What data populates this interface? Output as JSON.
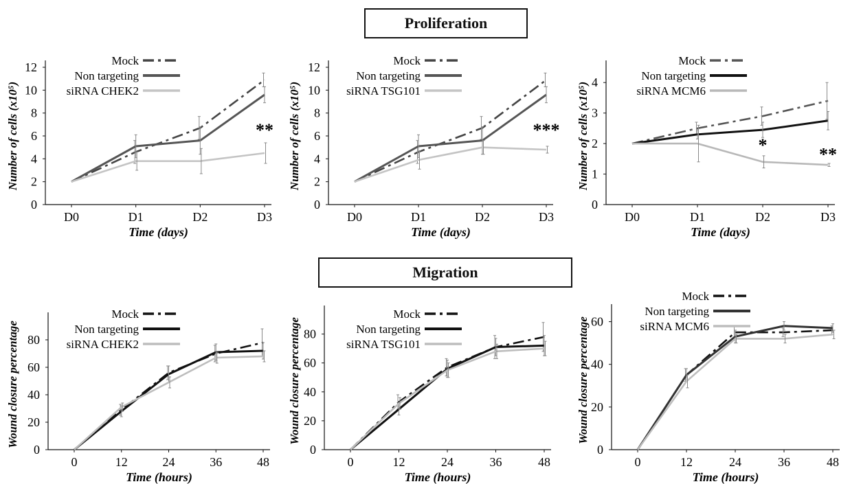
{
  "sections": {
    "proliferation": "Proliferation",
    "migration": "Migration"
  },
  "colors": {
    "mock": "#333333",
    "non_targeting": "#111111",
    "sirna": "#b8b8b8",
    "sirna_dark": "#666666"
  },
  "chart_data": [
    {
      "type": "line",
      "xlabel": "Time (days)",
      "ylabel": "Number of cells (x10⁵)",
      "categories": [
        "D0",
        "D1",
        "D2",
        "D3"
      ],
      "ylim": [
        0,
        12
      ],
      "yticks": [
        0,
        2,
        4,
        6,
        8,
        10,
        12
      ],
      "legend_position": "top-left",
      "series": [
        {
          "name": "Mock",
          "style": "dashdot",
          "color": "#444444",
          "values": [
            2,
            4.6,
            6.7,
            10.9
          ],
          "err": [
            0,
            1.0,
            1.0,
            0.6
          ]
        },
        {
          "name": "Non targeting",
          "style": "solid",
          "color": "#555555",
          "values": [
            2,
            5.1,
            5.6,
            9.6
          ],
          "err": [
            0,
            1.0,
            1.2,
            0.7
          ]
        },
        {
          "name": "siRNA CHEK2",
          "style": "solid",
          "color": "#c4c4c4",
          "values": [
            2,
            3.8,
            3.8,
            4.5
          ],
          "err": [
            0,
            0.8,
            1.1,
            0.9
          ]
        }
      ],
      "annotations": [
        {
          "text": "**",
          "x": "D3",
          "y": 6.0
        }
      ]
    },
    {
      "type": "line",
      "xlabel": "Time (days)",
      "ylabel": "Number of cells (x10⁵)",
      "categories": [
        "D0",
        "D1",
        "D2",
        "D3"
      ],
      "ylim": [
        0,
        12
      ],
      "yticks": [
        0,
        2,
        4,
        6,
        8,
        10,
        12
      ],
      "legend_position": "top-left",
      "series": [
        {
          "name": "Mock",
          "style": "dashdot",
          "color": "#444444",
          "values": [
            2,
            4.6,
            6.7,
            10.9
          ],
          "err": [
            0,
            1.0,
            1.0,
            0.6
          ]
        },
        {
          "name": "Non targeting",
          "style": "solid",
          "color": "#555555",
          "values": [
            2,
            5.1,
            5.6,
            9.6
          ],
          "err": [
            0,
            1.0,
            1.2,
            0.7
          ]
        },
        {
          "name": "siRNA TSG101",
          "style": "solid",
          "color": "#c4c4c4",
          "values": [
            2,
            3.9,
            5.0,
            4.8
          ],
          "err": [
            0,
            0.8,
            0.6,
            0.3
          ]
        }
      ],
      "annotations": [
        {
          "text": "***",
          "x": "D3",
          "y": 6.0
        }
      ]
    },
    {
      "type": "line",
      "xlabel": "Time (days)",
      "ylabel": "Number of cells (x10⁵)",
      "categories": [
        "D0",
        "D1",
        "D2",
        "D3"
      ],
      "ylim": [
        0,
        4.5
      ],
      "yticks": [
        0,
        1,
        2,
        3,
        4
      ],
      "legend_position": "top-left",
      "series": [
        {
          "name": "Mock",
          "style": "dashdot",
          "color": "#555555",
          "values": [
            2,
            2.5,
            2.9,
            3.4
          ],
          "err": [
            0,
            0.2,
            0.3,
            0.6
          ]
        },
        {
          "name": "Non targeting",
          "style": "solid",
          "color": "#111111",
          "values": [
            2,
            2.3,
            2.45,
            2.75
          ],
          "err": [
            0,
            0.15,
            0.25,
            0.3
          ]
        },
        {
          "name": "siRNA MCM6",
          "style": "solid",
          "color": "#b8b8b8",
          "values": [
            2,
            2.0,
            1.4,
            1.3
          ],
          "err": [
            0,
            0.6,
            0.2,
            0.05
          ]
        }
      ],
      "annotations": [
        {
          "text": "*",
          "x": "D2",
          "y": 1.75
        },
        {
          "text": "**",
          "x": "D3",
          "y": 1.45
        }
      ]
    },
    {
      "type": "line",
      "xlabel": "Time (hours)",
      "ylabel": "Wound closure percentage",
      "categories": [
        "0",
        "12",
        "24",
        "36",
        "48"
      ],
      "ylim": [
        0,
        95
      ],
      "yticks": [
        0,
        20,
        40,
        60,
        80
      ],
      "legend_position": "top-left",
      "series": [
        {
          "name": "Mock",
          "style": "dashdot",
          "color": "#111111",
          "values": [
            0,
            29,
            56,
            70,
            78
          ],
          "err": [
            0,
            4,
            5,
            6,
            10
          ]
        },
        {
          "name": "Non targeting",
          "style": "solid",
          "color": "#111111",
          "values": [
            0,
            28,
            55,
            71,
            72
          ],
          "err": [
            0,
            4,
            6,
            6,
            6
          ]
        },
        {
          "name": "siRNA CHEK2",
          "style": "solid",
          "color": "#bdbdbd",
          "values": [
            0,
            31,
            49,
            67,
            68
          ],
          "err": [
            0,
            3,
            4,
            4,
            4
          ]
        }
      ],
      "annotations": []
    },
    {
      "type": "line",
      "xlabel": "Time (hours)",
      "ylabel": "Wound closure percentage",
      "categories": [
        "0",
        "12",
        "24",
        "36",
        "48"
      ],
      "ylim": [
        0,
        95
      ],
      "yticks": [
        0,
        20,
        40,
        60,
        80
      ],
      "legend_position": "top-left",
      "series": [
        {
          "name": "Mock",
          "style": "dashdot",
          "color": "#111111",
          "values": [
            0,
            33,
            57,
            71,
            78
          ],
          "err": [
            0,
            5,
            6,
            8,
            10
          ]
        },
        {
          "name": "Non targeting",
          "style": "solid",
          "color": "#111111",
          "values": [
            0,
            28,
            56,
            71,
            72
          ],
          "err": [
            0,
            4,
            6,
            6,
            7
          ]
        },
        {
          "name": "siRNA TSG101",
          "style": "solid",
          "color": "#bdbdbd",
          "values": [
            0,
            32,
            55,
            68,
            70
          ],
          "err": [
            0,
            4,
            5,
            5,
            5
          ]
        }
      ],
      "annotations": []
    },
    {
      "type": "line",
      "xlabel": "Time (hours)",
      "ylabel": "Wound closure percentage",
      "categories": [
        "0",
        "12",
        "24",
        "36",
        "48"
      ],
      "ylim": [
        0,
        65
      ],
      "yticks": [
        0,
        20,
        40,
        60
      ],
      "legend_position": "top-left",
      "series": [
        {
          "name": "Mock",
          "style": "dashdot",
          "color": "#111111",
          "values": [
            0,
            35,
            55,
            55,
            56
          ],
          "err": [
            0,
            3,
            3,
            2,
            2
          ]
        },
        {
          "name": "Non targeting",
          "style": "solid",
          "color": "#333333",
          "values": [
            0,
            35,
            53,
            58,
            57
          ],
          "err": [
            0,
            3,
            3,
            2,
            2
          ]
        },
        {
          "name": "siRNA MCM6",
          "style": "solid",
          "color": "#bdbdbd",
          "values": [
            0,
            32,
            52,
            52,
            54
          ],
          "err": [
            0,
            3,
            2,
            2,
            2
          ]
        }
      ],
      "annotations": []
    }
  ]
}
